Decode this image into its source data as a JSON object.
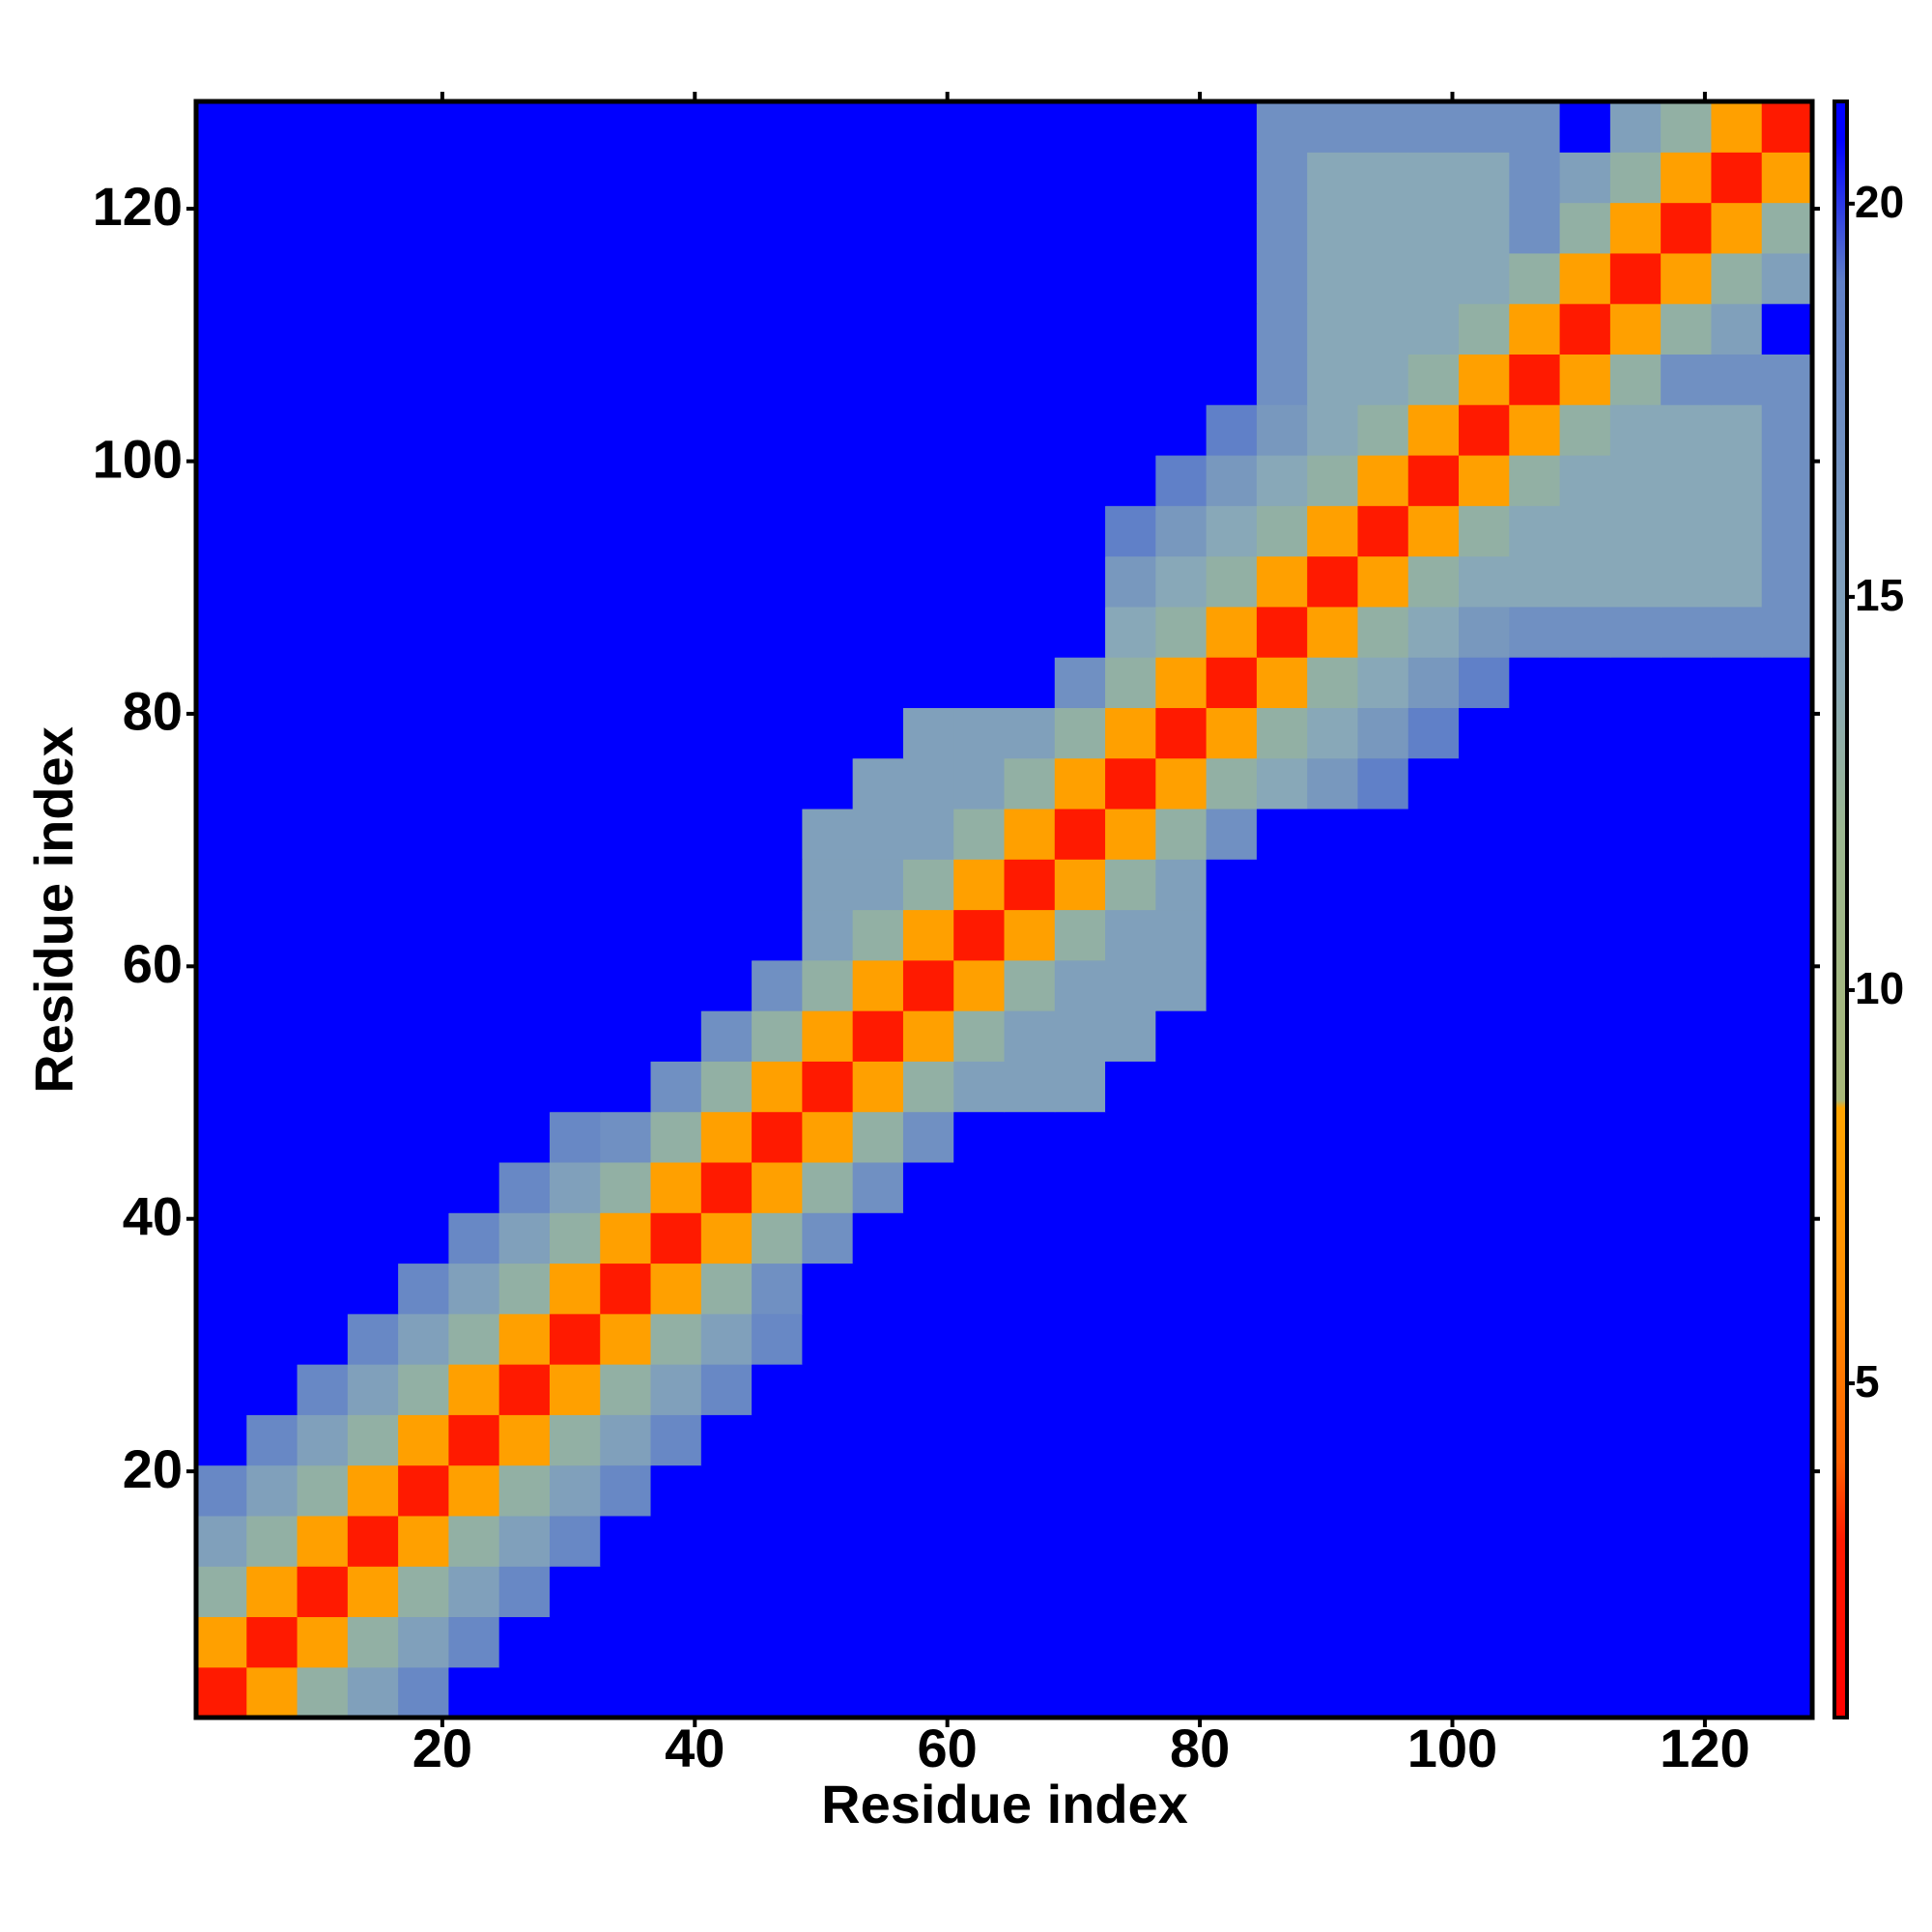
{
  "chart_data": {
    "type": "heatmap",
    "xlabel": "Residue index",
    "ylabel": "Residue index",
    "x": [
      2.5,
      6.5,
      10.5,
      14.5,
      18.5,
      22.5,
      26.5,
      30.5,
      34.5,
      38.5,
      42.5,
      46.5,
      50.5,
      54.5,
      58.5,
      62.5,
      66.5,
      70.5,
      74.5,
      78.5,
      82.5,
      86.5,
      90.5,
      94.5,
      98.5,
      102.5,
      106.5,
      110.5,
      114.5,
      118.5,
      122.5,
      126.5
    ],
    "y": [
      2.5,
      6.5,
      10.5,
      14.5,
      18.5,
      22.5,
      26.5,
      30.5,
      34.5,
      38.5,
      42.5,
      46.5,
      50.5,
      54.5,
      58.5,
      62.5,
      66.5,
      70.5,
      74.5,
      78.5,
      82.5,
      86.5,
      90.5,
      94.5,
      98.5,
      102.5,
      106.5,
      110.5,
      114.5,
      118.5,
      122.5,
      126.5
    ],
    "xlim": [
      0.5,
      128.5
    ],
    "ylim": [
      0.5,
      128.5
    ],
    "xticks": [
      20,
      40,
      60,
      80,
      100,
      120
    ],
    "yticks": [
      20,
      40,
      60,
      80,
      100,
      120
    ],
    "zlim": [
      0.75,
      21.3
    ],
    "zticks": [
      5,
      10,
      15,
      20
    ],
    "colorscale": [
      [
        0.75,
        "#ff0000"
      ],
      [
        3,
        "#ff1a00"
      ],
      [
        4,
        "#ff6000"
      ],
      [
        6,
        "#ff8c00"
      ],
      [
        8.5,
        "#ffa500"
      ],
      [
        8.6,
        "#a8b878"
      ],
      [
        12,
        "#9cb890"
      ],
      [
        14,
        "#88a8b8"
      ],
      [
        19,
        "#6080c8"
      ],
      [
        20.8,
        "#0000ff"
      ],
      [
        21.3,
        "#0000ff"
      ]
    ],
    "z": [
      [
        3,
        8,
        13,
        15,
        18,
        21,
        21,
        21,
        21,
        21,
        21,
        21,
        21,
        21,
        21,
        21,
        21,
        21,
        21,
        21,
        21,
        21,
        21,
        21,
        21,
        21,
        21,
        21,
        21,
        21,
        21,
        21
      ],
      [
        8,
        3,
        8,
        13,
        15,
        18,
        21,
        21,
        21,
        21,
        21,
        21,
        21,
        21,
        21,
        21,
        21,
        21,
        21,
        21,
        21,
        21,
        21,
        21,
        21,
        21,
        21,
        21,
        21,
        21,
        21,
        21
      ],
      [
        13,
        8,
        3,
        8,
        13,
        15,
        18,
        21,
        21,
        21,
        21,
        21,
        21,
        21,
        21,
        21,
        21,
        21,
        21,
        21,
        21,
        21,
        21,
        21,
        21,
        21,
        21,
        21,
        21,
        21,
        21,
        21
      ],
      [
        15,
        13,
        8,
        3,
        8,
        13,
        15,
        18,
        21,
        21,
        21,
        21,
        21,
        21,
        21,
        21,
        21,
        21,
        21,
        21,
        21,
        21,
        21,
        21,
        21,
        21,
        21,
        21,
        21,
        21,
        21,
        21
      ],
      [
        18,
        15,
        13,
        8,
        3,
        8,
        13,
        15,
        18,
        21,
        21,
        21,
        21,
        21,
        21,
        21,
        21,
        21,
        21,
        21,
        21,
        21,
        21,
        21,
        21,
        21,
        21,
        21,
        21,
        21,
        21,
        21
      ],
      [
        21,
        18,
        15,
        13,
        8,
        3,
        8,
        13,
        15,
        18,
        21,
        21,
        21,
        21,
        21,
        21,
        21,
        21,
        21,
        21,
        21,
        21,
        21,
        21,
        21,
        21,
        21,
        21,
        21,
        21,
        21,
        21
      ],
      [
        21,
        21,
        18,
        15,
        13,
        8,
        3,
        8,
        13,
        15,
        18,
        21,
        21,
        21,
        21,
        21,
        21,
        21,
        21,
        21,
        21,
        21,
        21,
        21,
        21,
        21,
        21,
        21,
        21,
        21,
        21,
        21
      ],
      [
        21,
        21,
        21,
        18,
        15,
        13,
        8,
        3,
        8,
        13,
        15,
        18,
        21,
        21,
        21,
        21,
        21,
        21,
        21,
        21,
        21,
        21,
        21,
        21,
        21,
        21,
        21,
        21,
        21,
        21,
        21,
        21
      ],
      [
        21,
        21,
        21,
        21,
        18,
        15,
        13,
        8,
        3,
        8,
        13,
        17,
        21,
        21,
        21,
        21,
        21,
        21,
        21,
        21,
        21,
        21,
        21,
        21,
        21,
        21,
        21,
        21,
        21,
        21,
        21,
        21
      ],
      [
        21,
        21,
        21,
        21,
        21,
        18,
        15,
        13,
        8,
        3,
        8,
        13,
        17,
        21,
        21,
        21,
        21,
        21,
        21,
        21,
        21,
        21,
        21,
        21,
        21,
        21,
        21,
        21,
        21,
        21,
        21,
        21
      ],
      [
        21,
        21,
        21,
        21,
        21,
        21,
        18,
        15,
        13,
        8,
        3,
        8,
        13,
        17,
        21,
        21,
        21,
        21,
        21,
        21,
        21,
        21,
        21,
        21,
        21,
        21,
        21,
        21,
        21,
        21,
        21,
        21
      ],
      [
        21,
        21,
        21,
        21,
        21,
        21,
        21,
        18,
        17,
        13,
        8,
        3,
        8,
        13,
        17,
        21,
        21,
        21,
        21,
        21,
        21,
        21,
        21,
        21,
        21,
        21,
        21,
        21,
        21,
        21,
        21,
        21
      ],
      [
        21,
        21,
        21,
        21,
        21,
        21,
        21,
        21,
        21,
        17,
        13,
        8,
        3,
        8,
        13,
        15,
        15,
        15,
        21,
        21,
        21,
        21,
        21,
        21,
        21,
        21,
        21,
        21,
        21,
        21,
        21,
        21
      ],
      [
        21,
        21,
        21,
        21,
        21,
        21,
        21,
        21,
        21,
        21,
        17,
        13,
        8,
        3,
        8,
        13,
        15,
        15,
        15,
        21,
        21,
        21,
        21,
        21,
        21,
        21,
        21,
        21,
        21,
        21,
        21,
        21
      ],
      [
        21,
        21,
        21,
        21,
        21,
        21,
        21,
        21,
        21,
        21,
        21,
        17,
        13,
        8,
        3,
        8,
        13,
        15,
        15,
        15,
        21,
        21,
        21,
        21,
        21,
        21,
        21,
        21,
        21,
        21,
        21,
        21
      ],
      [
        21,
        21,
        21,
        21,
        21,
        21,
        21,
        21,
        21,
        21,
        21,
        21,
        15,
        13,
        8,
        3,
        8,
        13,
        15,
        15,
        21,
        21,
        21,
        21,
        21,
        21,
        21,
        21,
        21,
        21,
        21,
        21
      ],
      [
        21,
        21,
        21,
        21,
        21,
        21,
        21,
        21,
        21,
        21,
        21,
        21,
        15,
        15,
        13,
        8,
        3,
        8,
        13,
        15,
        21,
        21,
        21,
        21,
        21,
        21,
        21,
        21,
        21,
        21,
        21,
        21
      ],
      [
        21,
        21,
        21,
        21,
        21,
        21,
        21,
        21,
        21,
        21,
        21,
        21,
        15,
        15,
        15,
        13,
        8,
        3,
        8,
        13,
        17,
        21,
        21,
        21,
        21,
        21,
        21,
        21,
        21,
        21,
        21,
        21
      ],
      [
        21,
        21,
        21,
        21,
        21,
        21,
        21,
        21,
        21,
        21,
        21,
        21,
        21,
        15,
        15,
        15,
        13,
        8,
        3,
        8,
        13,
        14,
        16,
        19,
        21,
        21,
        21,
        21,
        21,
        21,
        21,
        21
      ],
      [
        21,
        21,
        21,
        21,
        21,
        21,
        21,
        21,
        21,
        21,
        21,
        21,
        21,
        21,
        15,
        15,
        15,
        13,
        8,
        3,
        8,
        13,
        14,
        16,
        19,
        21,
        21,
        21,
        21,
        21,
        21,
        21
      ],
      [
        21,
        21,
        21,
        21,
        21,
        21,
        21,
        21,
        21,
        21,
        21,
        21,
        21,
        21,
        21,
        21,
        21,
        17,
        13,
        8,
        3,
        8,
        13,
        14,
        16,
        19,
        21,
        21,
        21,
        21,
        21,
        21
      ],
      [
        21,
        21,
        21,
        21,
        21,
        21,
        21,
        21,
        21,
        21,
        21,
        21,
        21,
        21,
        21,
        21,
        21,
        21,
        14,
        13,
        8,
        3,
        8,
        13,
        14,
        16,
        17,
        17,
        17,
        17,
        17,
        17
      ],
      [
        21,
        21,
        21,
        21,
        21,
        21,
        21,
        21,
        21,
        21,
        21,
        21,
        21,
        21,
        21,
        21,
        21,
        21,
        16,
        14,
        13,
        8,
        3,
        8,
        13,
        14,
        14,
        14,
        14,
        14,
        14,
        17
      ],
      [
        21,
        21,
        21,
        21,
        21,
        21,
        21,
        21,
        21,
        21,
        21,
        21,
        21,
        21,
        21,
        21,
        21,
        21,
        19,
        16,
        14,
        13,
        8,
        3,
        8,
        13,
        14,
        14,
        14,
        14,
        14,
        17
      ],
      [
        21,
        21,
        21,
        21,
        21,
        21,
        21,
        21,
        21,
        21,
        21,
        21,
        21,
        21,
        21,
        21,
        21,
        21,
        21,
        19,
        16,
        14,
        13,
        8,
        3,
        8,
        13,
        14,
        14,
        14,
        14,
        17
      ],
      [
        21,
        21,
        21,
        21,
        21,
        21,
        21,
        21,
        21,
        21,
        21,
        21,
        21,
        21,
        21,
        21,
        21,
        21,
        21,
        21,
        19,
        16,
        14,
        13,
        8,
        3,
        8,
        13,
        14,
        14,
        14,
        17
      ],
      [
        21,
        21,
        21,
        21,
        21,
        21,
        21,
        21,
        21,
        21,
        21,
        21,
        21,
        21,
        21,
        21,
        21,
        21,
        21,
        21,
        21,
        17,
        14,
        14,
        13,
        8,
        3,
        8,
        13,
        17,
        17,
        17
      ],
      [
        21,
        21,
        21,
        21,
        21,
        21,
        21,
        21,
        21,
        21,
        21,
        21,
        21,
        21,
        21,
        21,
        21,
        21,
        21,
        21,
        21,
        17,
        14,
        14,
        14,
        13,
        8,
        3,
        8,
        13,
        15,
        21
      ],
      [
        21,
        21,
        21,
        21,
        21,
        21,
        21,
        21,
        21,
        21,
        21,
        21,
        21,
        21,
        21,
        21,
        21,
        21,
        21,
        21,
        21,
        17,
        14,
        14,
        14,
        14,
        13,
        8,
        3,
        8,
        13,
        15
      ],
      [
        21,
        21,
        21,
        21,
        21,
        21,
        21,
        21,
        21,
        21,
        21,
        21,
        21,
        21,
        21,
        21,
        21,
        21,
        21,
        21,
        21,
        17,
        14,
        14,
        14,
        14,
        17,
        13,
        8,
        3,
        8,
        13
      ],
      [
        21,
        21,
        21,
        21,
        21,
        21,
        21,
        21,
        21,
        21,
        21,
        21,
        21,
        21,
        21,
        21,
        21,
        21,
        21,
        21,
        21,
        17,
        14,
        14,
        14,
        14,
        17,
        15,
        13,
        8,
        3,
        8
      ],
      [
        21,
        21,
        21,
        21,
        21,
        21,
        21,
        21,
        21,
        21,
        21,
        21,
        21,
        21,
        21,
        21,
        21,
        21,
        21,
        21,
        21,
        17,
        17,
        17,
        17,
        17,
        17,
        21,
        15,
        13,
        8,
        3
      ]
    ]
  }
}
